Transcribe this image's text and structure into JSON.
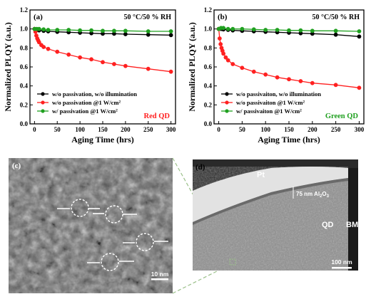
{
  "chart_data": [
    {
      "type": "line",
      "panel_label": "(a)",
      "condition": "50 °C/50 % RH",
      "corner_label": "Red QD",
      "corner_color": "#ff2020",
      "xlabel": "Aging Time (hrs)",
      "ylabel": "Normalized PLQY (a.u.)",
      "xlim": [
        -10,
        310
      ],
      "ylim": [
        0.0,
        1.2
      ],
      "xticks": [
        0,
        50,
        100,
        150,
        200,
        250,
        300
      ],
      "yticks": [
        0.0,
        0.2,
        0.4,
        0.6,
        0.8,
        1.0,
        1.2
      ],
      "series": [
        {
          "name": "w/o passivation, w/o illumination",
          "color": "#000000",
          "x": [
            0,
            5,
            10,
            20,
            30,
            50,
            75,
            100,
            125,
            150,
            175,
            200,
            250,
            300
          ],
          "y": [
            1.0,
            0.99,
            0.985,
            0.98,
            0.975,
            0.97,
            0.965,
            0.96,
            0.955,
            0.95,
            0.95,
            0.945,
            0.94,
            0.935
          ]
        },
        {
          "name": "w/o passivation @1 W/cm²",
          "color": "#ff2020",
          "x": [
            0,
            2,
            4,
            6,
            8,
            10,
            15,
            20,
            30,
            50,
            75,
            100,
            125,
            150,
            175,
            200,
            250,
            300
          ],
          "y": [
            1.0,
            0.97,
            0.93,
            0.9,
            0.88,
            0.86,
            0.83,
            0.81,
            0.79,
            0.76,
            0.73,
            0.7,
            0.68,
            0.65,
            0.63,
            0.61,
            0.58,
            0.55
          ]
        },
        {
          "name": "w/   passivation @1 W/cm²",
          "color": "#20a020",
          "x": [
            0,
            5,
            10,
            20,
            30,
            50,
            75,
            100,
            125,
            150,
            175,
            200,
            250,
            300
          ],
          "y": [
            1.0,
            1.0,
            1.0,
            0.995,
            0.99,
            0.99,
            0.99,
            0.985,
            0.985,
            0.98,
            0.98,
            0.98,
            0.975,
            0.975
          ]
        }
      ]
    },
    {
      "type": "line",
      "panel_label": "(b)",
      "condition": "50 °C/50 % RH",
      "corner_label": "Green QD",
      "corner_color": "#20a020",
      "xlabel": "Aging Time (hrs)",
      "ylabel": "Normalized PLQY (a.u.)",
      "xlim": [
        -10,
        310
      ],
      "ylim": [
        0.0,
        1.2
      ],
      "xticks": [
        0,
        50,
        100,
        150,
        200,
        250,
        300
      ],
      "yticks": [
        0.0,
        0.2,
        0.4,
        0.6,
        0.8,
        1.0,
        1.2
      ],
      "series": [
        {
          "name": "w/o passivaiton, w/o illumination",
          "color": "#000000",
          "x": [
            0,
            5,
            10,
            20,
            30,
            50,
            75,
            100,
            125,
            150,
            175,
            200,
            250,
            300
          ],
          "y": [
            1.0,
            1.0,
            0.995,
            0.99,
            0.985,
            0.98,
            0.975,
            0.97,
            0.965,
            0.96,
            0.955,
            0.95,
            0.94,
            0.92
          ]
        },
        {
          "name": "w/o passivaiton @1 W/cm²",
          "color": "#ff2020",
          "x": [
            0,
            2,
            4,
            6,
            8,
            10,
            15,
            20,
            30,
            50,
            75,
            100,
            125,
            150,
            175,
            200,
            250,
            300
          ],
          "y": [
            1.0,
            0.9,
            0.84,
            0.8,
            0.77,
            0.74,
            0.7,
            0.67,
            0.63,
            0.59,
            0.55,
            0.52,
            0.49,
            0.47,
            0.45,
            0.43,
            0.41,
            0.38
          ]
        },
        {
          "name": "w/   passivaiton @1 W/cm²",
          "color": "#20a020",
          "x": [
            0,
            5,
            10,
            20,
            30,
            50,
            75,
            100,
            125,
            150,
            175,
            200,
            250,
            300
          ],
          "y": [
            1.0,
            1.01,
            1.01,
            1.0,
            1.0,
            1.0,
            0.995,
            0.99,
            0.99,
            0.985,
            0.985,
            0.98,
            0.98,
            0.975
          ]
        }
      ]
    }
  ],
  "images": {
    "c": {
      "panel_label": "(c)",
      "scale_bar": "10 nm"
    },
    "d": {
      "panel_label": "(d)",
      "scale_bar": "100 nm",
      "label_pt": "Pt",
      "label_qd": "QD",
      "label_bm": "BM",
      "label_layer": "75 nm Al",
      "label_layer_sub": "2",
      "label_layer_end": "O",
      "label_layer_sub2": "3"
    }
  }
}
